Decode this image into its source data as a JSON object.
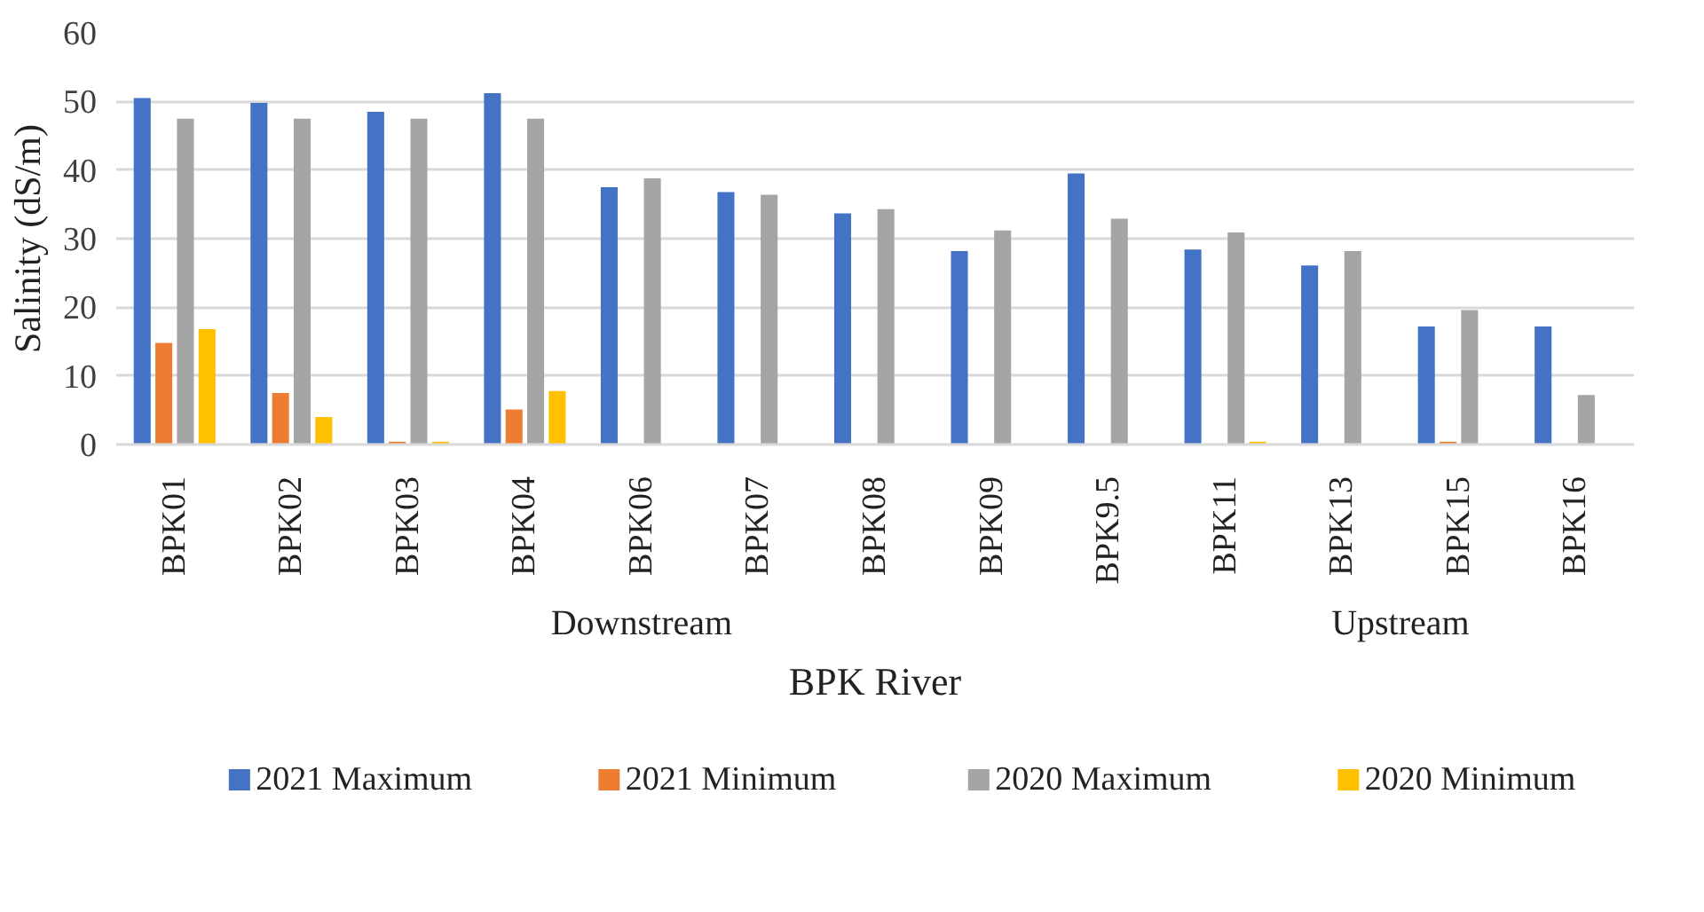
{
  "chart_data": {
    "type": "bar",
    "xlabel": "BPK River",
    "ylabel": "Salinity (dS/m)",
    "categories": [
      "BPK01",
      "BPK02",
      "BPK03",
      "BPK04",
      "BPK06",
      "BPK07",
      "BPK08",
      "BPK09",
      "BPK9.5",
      "BPK11",
      "BPK13",
      "BPK15",
      "BPK16"
    ],
    "series": [
      {
        "name": "2021 Maximum",
        "color": "#4472c4",
        "values": [
          50.5,
          49.8,
          48.5,
          51.2,
          37.5,
          36.8,
          33.7,
          28.2,
          39.5,
          28.4,
          26.1,
          17.2,
          17.2
        ]
      },
      {
        "name": "2021 Minimum",
        "color": "#ed7d31",
        "values": [
          14.8,
          7.5,
          0.4,
          5.1,
          0,
          0,
          0,
          0,
          0,
          0,
          0,
          0.4,
          0
        ]
      },
      {
        "name": "2020 Maximum",
        "color": "#a5a5a5",
        "values": [
          47.5,
          47.5,
          47.5,
          47.5,
          38.8,
          36.4,
          34.3,
          31.2,
          32.9,
          30.9,
          28.2,
          19.6,
          7.2
        ]
      },
      {
        "name": "2020 Minimum",
        "color": "#ffc000",
        "values": [
          16.8,
          4.0,
          0.4,
          7.8,
          0,
          0,
          0,
          0,
          0,
          0.4,
          0,
          0,
          0
        ]
      }
    ],
    "annotations": [
      "Downstream",
      "Upstream"
    ],
    "ylim": [
      0,
      60
    ],
    "yticks": [
      0,
      10,
      20,
      30,
      40,
      50,
      60
    ],
    "grid": "y",
    "legend": "bottom"
  }
}
